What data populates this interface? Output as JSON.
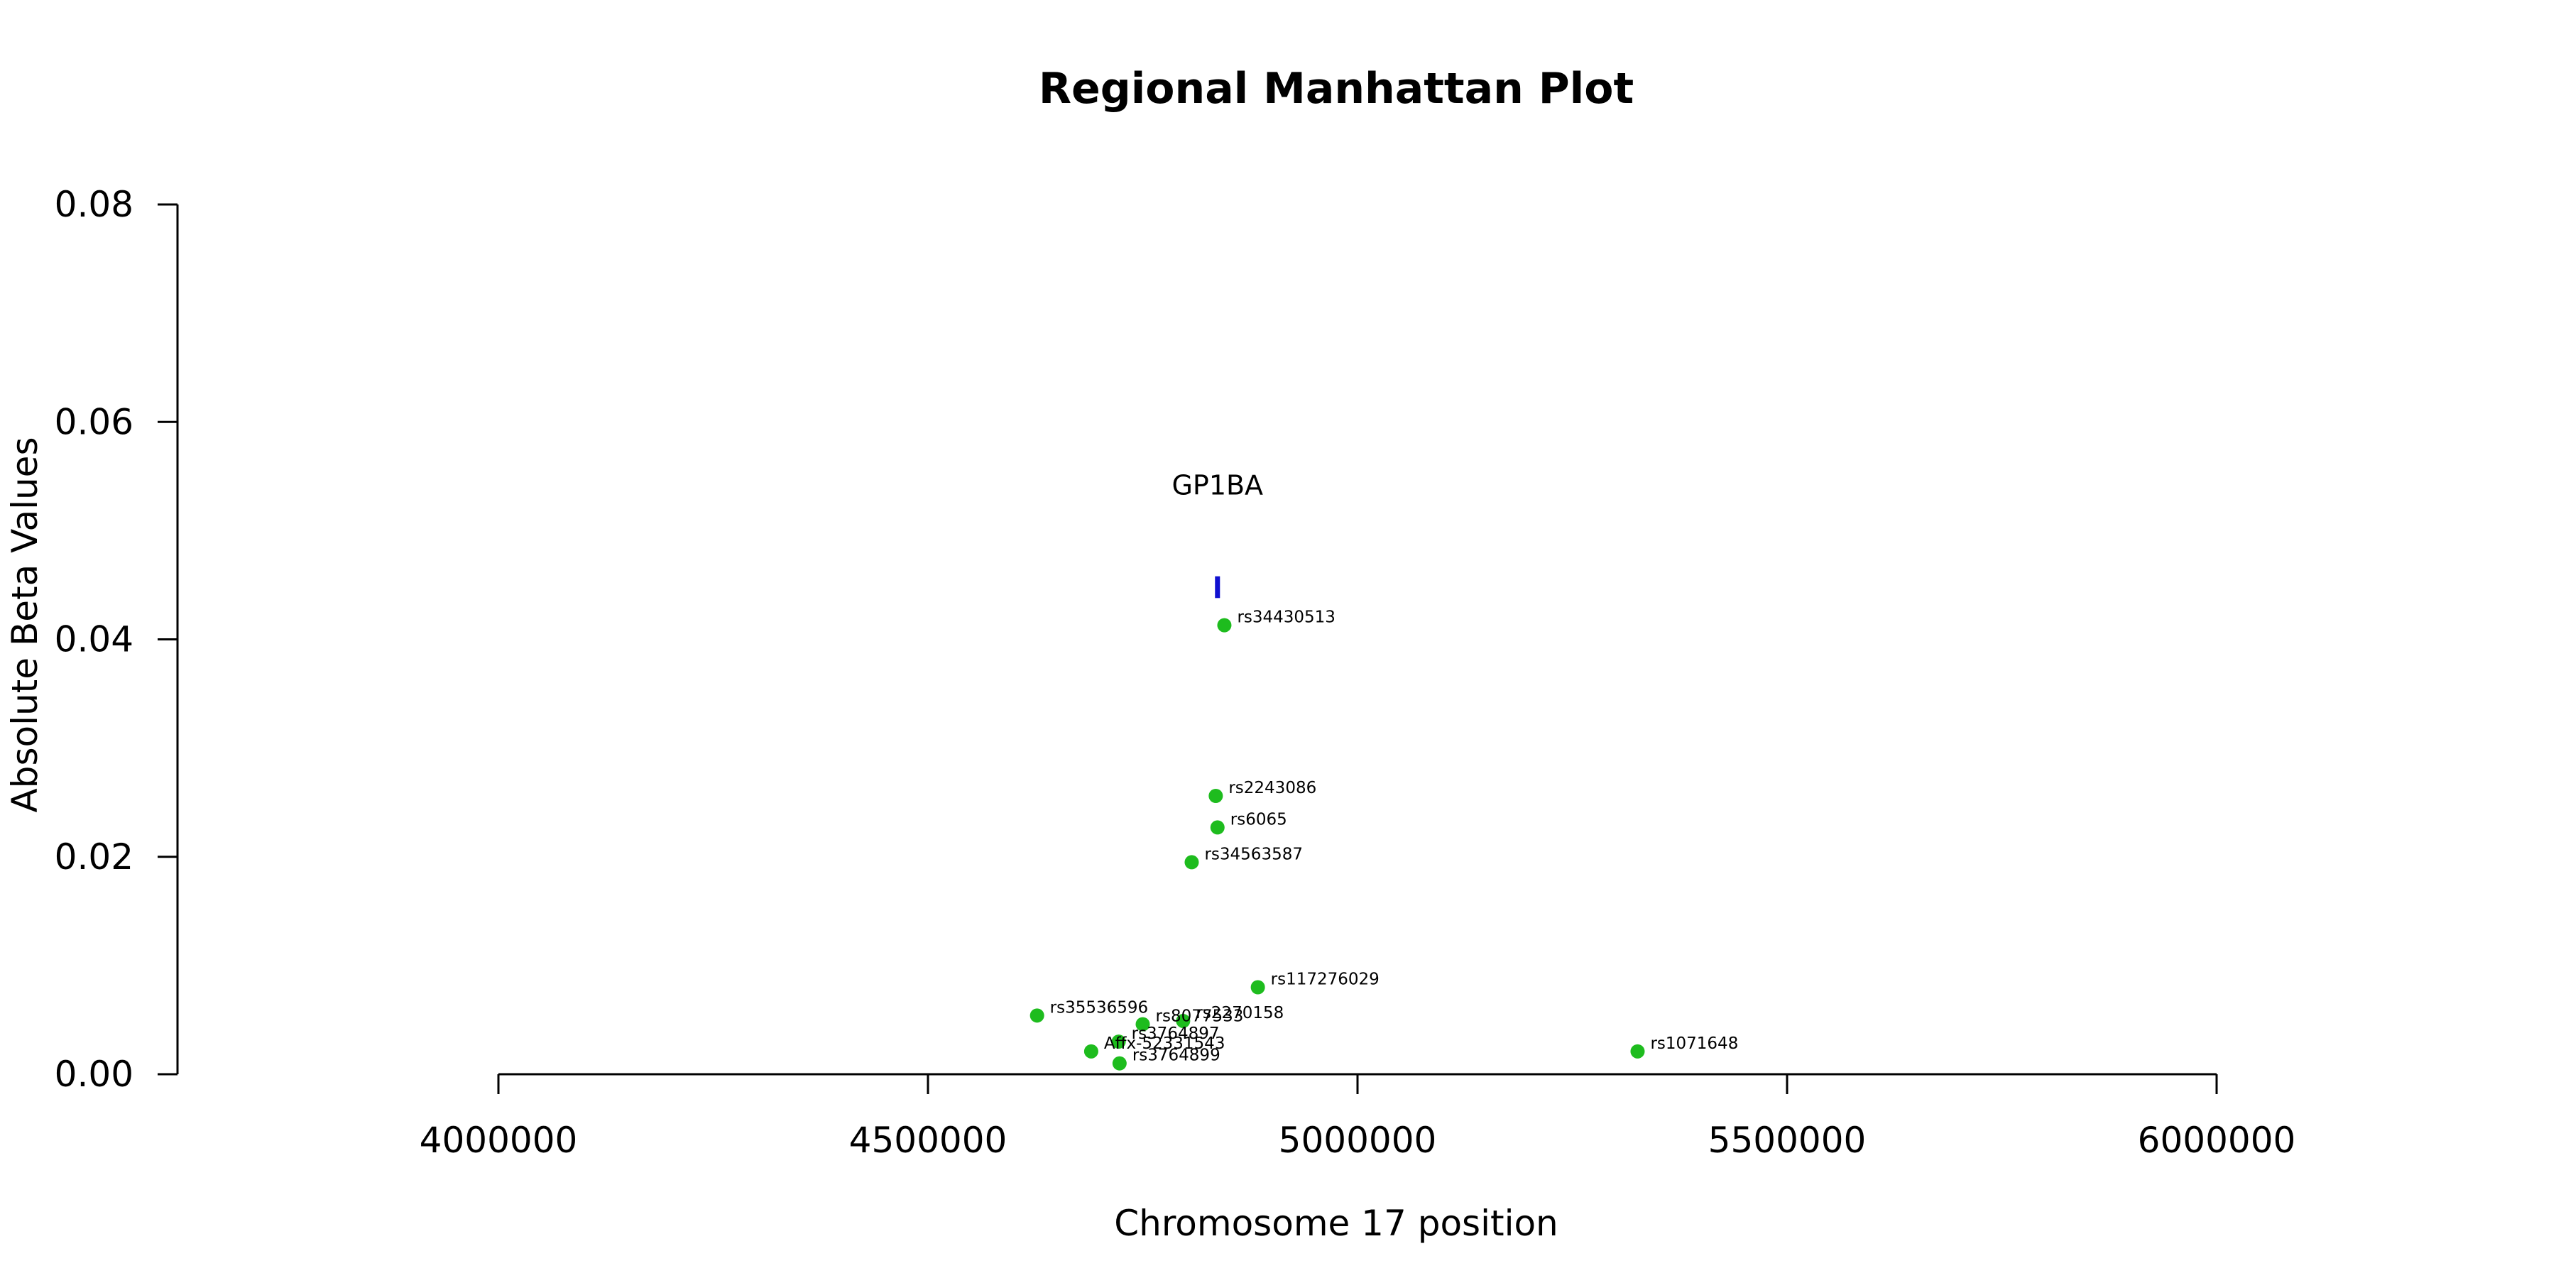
{
  "chart_data": {
    "type": "scatter",
    "title": "Regional Manhattan Plot",
    "xlabel": "Chromosome 17 position",
    "ylabel": "Absolute Beta Values",
    "xlim": [
      4000000,
      6000000
    ],
    "ylim": [
      0,
      0.08
    ],
    "x_ticks": [
      4000000,
      4500000,
      5000000,
      5500000,
      6000000
    ],
    "x_tick_labels": [
      "4000000",
      "4500000",
      "5000000",
      "5500000",
      "6000000"
    ],
    "y_ticks": [
      0.0,
      0.02,
      0.04,
      0.06,
      0.08
    ],
    "y_tick_labels": [
      "0.00",
      "0.02",
      "0.04",
      "0.06",
      "0.08"
    ],
    "grid": false,
    "point_color": "#1ebc1e",
    "gene_color": "#1010d0",
    "points": [
      {
        "label": "rs34430513",
        "x": 4845000,
        "y": 0.0413
      },
      {
        "label": "rs2243086",
        "x": 4835000,
        "y": 0.0256
      },
      {
        "label": "rs6065",
        "x": 4837000,
        "y": 0.0227
      },
      {
        "label": "rs34563587",
        "x": 4807000,
        "y": 0.0195
      },
      {
        "label": "rs117276029",
        "x": 4884000,
        "y": 0.008
      },
      {
        "label": "rs35536596",
        "x": 4627000,
        "y": 0.0054
      },
      {
        "label": "rs8077533",
        "x": 4750000,
        "y": 0.0046
      },
      {
        "label": "rs2270158",
        "x": 4797000,
        "y": 0.0049
      },
      {
        "label": "rs3764897",
        "x": 4722000,
        "y": 0.003
      },
      {
        "label": "Affx-52331543",
        "x": 4690000,
        "y": 0.0021
      },
      {
        "label": "rs3764899",
        "x": 4723000,
        "y": 0.001
      },
      {
        "label": "rs1071648",
        "x": 5326000,
        "y": 0.0021
      }
    ],
    "genes": [
      {
        "name": "GP1BA",
        "x": 4837000,
        "y_low": 0.0438,
        "y_high": 0.0458
      }
    ]
  }
}
